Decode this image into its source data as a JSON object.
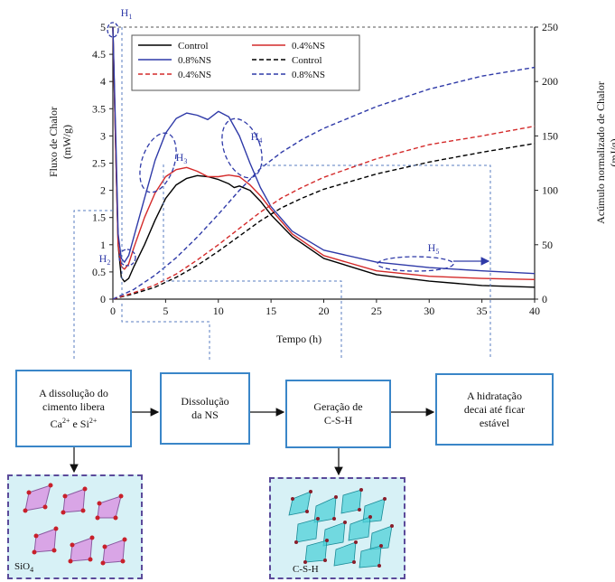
{
  "chart_data": {
    "type": "line",
    "title": "",
    "xlabel": "Tempo (h)",
    "ylabel_left": [
      "Fluxo de Chalor",
      "(mW/g)"
    ],
    "ylabel_right": [
      "Acúmulo normalizado de Chalor",
      "(mJ/g)"
    ],
    "xlim": [
      0,
      40
    ],
    "ylim_left": [
      0,
      5
    ],
    "ylim_right": [
      0,
      250
    ],
    "x_ticks": [
      "0",
      "5",
      "10",
      "15",
      "20",
      "25",
      "30",
      "35",
      "40"
    ],
    "y_ticks_left": [
      "0",
      "0.5",
      "1",
      "1.5",
      "2",
      "2.5",
      "3",
      "3.5",
      "4",
      "4.5",
      "5"
    ],
    "y_ticks_right": [
      "0",
      "50",
      "100",
      "150",
      "200",
      "250"
    ],
    "legend_position": "top-left",
    "legend": [
      "Control",
      "0.4%NS",
      "0.8%NS",
      "Control",
      "0.4%NS",
      "0.8%NS"
    ],
    "colors": {
      "control": "#000000",
      "ns04": "#d42a2a",
      "ns08": "#2f3aa8",
      "guide": "#5a7ec0"
    },
    "series": [
      {
        "name": "Control",
        "axis": "left",
        "style": "solid",
        "color": "#000000",
        "x": [
          0,
          0.3,
          0.5,
          0.8,
          1.1,
          1.5,
          2,
          3,
          4,
          5,
          6,
          7,
          8,
          9,
          10,
          11,
          11.5,
          12,
          13,
          14,
          15,
          17,
          20,
          25,
          30,
          35,
          40
        ],
        "y": [
          5,
          2.5,
          1.0,
          0.4,
          0.32,
          0.38,
          0.6,
          1.0,
          1.45,
          1.85,
          2.1,
          2.22,
          2.27,
          2.25,
          2.2,
          2.12,
          2.05,
          2.08,
          2.0,
          1.8,
          1.55,
          1.15,
          0.75,
          0.45,
          0.33,
          0.25,
          0.22
        ]
      },
      {
        "name": "0.4%NS",
        "axis": "left",
        "style": "solid",
        "color": "#d42a2a",
        "x": [
          0,
          0.3,
          0.5,
          0.8,
          1.1,
          1.5,
          2,
          3,
          4,
          5,
          6,
          7,
          8,
          9,
          10,
          11,
          12,
          13,
          14,
          15,
          17,
          20,
          25,
          30,
          35,
          40
        ],
        "y": [
          5,
          2.5,
          1.0,
          0.6,
          0.55,
          0.65,
          0.95,
          1.5,
          1.95,
          2.25,
          2.38,
          2.42,
          2.35,
          2.25,
          2.25,
          2.28,
          2.25,
          2.1,
          1.9,
          1.65,
          1.2,
          0.8,
          0.52,
          0.42,
          0.38,
          0.36
        ]
      },
      {
        "name": "0.8%NS",
        "axis": "left",
        "style": "solid",
        "color": "#2f3aa8",
        "x": [
          0,
          0.3,
          0.5,
          0.8,
          1.1,
          1.5,
          2,
          3,
          4,
          5,
          6,
          7,
          8,
          9,
          10,
          11,
          12,
          13,
          14,
          15,
          17,
          20,
          25,
          30,
          35,
          40
        ],
        "y": [
          5,
          2.8,
          1.2,
          0.75,
          0.68,
          0.8,
          1.15,
          1.85,
          2.55,
          3.05,
          3.32,
          3.42,
          3.38,
          3.3,
          3.45,
          3.35,
          3.0,
          2.5,
          2.05,
          1.7,
          1.25,
          0.9,
          0.68,
          0.58,
          0.52,
          0.47
        ]
      },
      {
        "name": "Control",
        "axis": "right",
        "style": "dashed",
        "color": "#000000",
        "x": [
          0,
          2,
          4,
          6,
          8,
          10,
          12,
          14,
          16,
          18,
          20,
          25,
          30,
          35,
          40
        ],
        "y": [
          0,
          5,
          11,
          20,
          31,
          44,
          58,
          72,
          84,
          93,
          101,
          115,
          126,
          135,
          143
        ]
      },
      {
        "name": "0.4%NS",
        "axis": "right",
        "style": "dashed",
        "color": "#d42a2a",
        "x": [
          0,
          2,
          4,
          6,
          8,
          10,
          12,
          14,
          16,
          18,
          20,
          25,
          30,
          35,
          40
        ],
        "y": [
          0,
          6,
          13,
          23,
          36,
          50,
          65,
          80,
          93,
          103,
          112,
          129,
          142,
          150,
          159
        ]
      },
      {
        "name": "0.8%NS",
        "axis": "right",
        "style": "dashed",
        "color": "#2f3aa8",
        "x": [
          0,
          2,
          4,
          6,
          8,
          10,
          12,
          14,
          16,
          18,
          20,
          25,
          30,
          35,
          40
        ],
        "y": [
          0,
          9,
          22,
          38,
          57,
          78,
          100,
          120,
          135,
          147,
          157,
          177,
          193,
          205,
          213
        ]
      }
    ],
    "annotations": [
      "H1",
      "H2",
      "H3",
      "H4",
      "H5"
    ]
  },
  "flow": {
    "steps": [
      {
        "line1": "A dissolução do",
        "line2": "cimento libera",
        "line3_a": "Ca",
        "line3_a_sup": "2+",
        "line3_b": " e Si",
        "line3_b_sup": "2+"
      },
      {
        "line1": "Dissolução",
        "line2": "da NS"
      },
      {
        "line1": "Geração de",
        "line2": "C-S-H"
      },
      {
        "line1": "A hidratação",
        "line2": "decai até ficar",
        "line3": "estável"
      }
    ],
    "panels": [
      {
        "label_main": "SiO",
        "label_sub": "4"
      },
      {
        "label": "C-S-H"
      }
    ]
  }
}
